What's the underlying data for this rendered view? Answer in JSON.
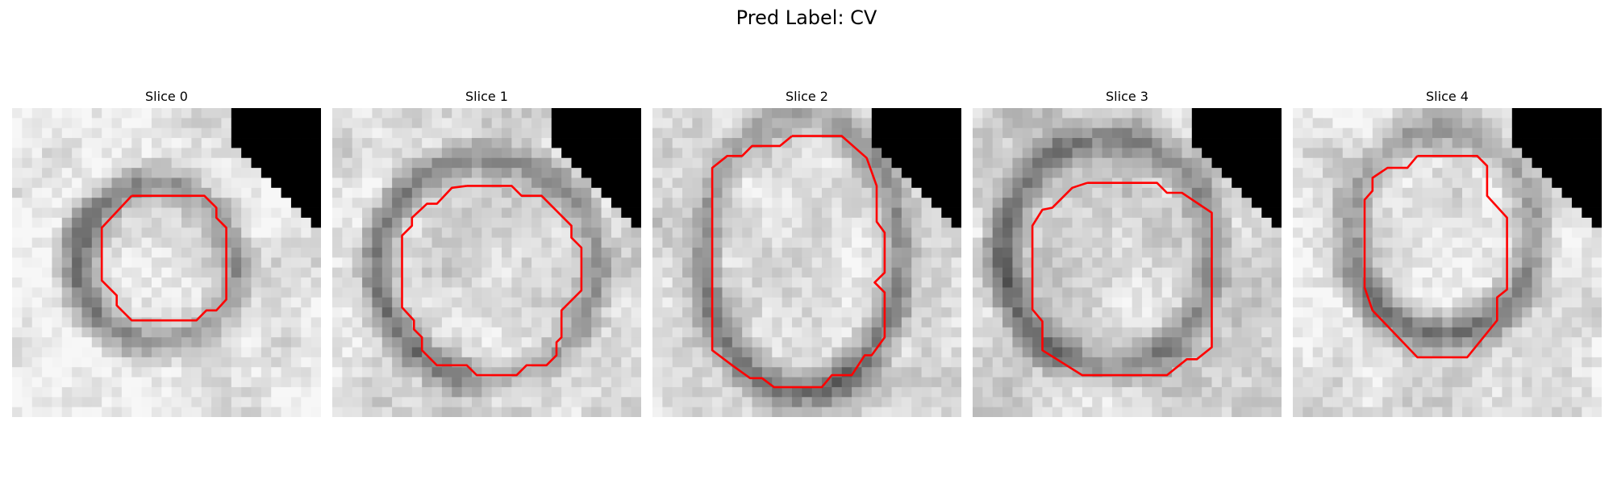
{
  "figure": {
    "title": "Pred Label: CV"
  },
  "panels": [
    {
      "title": "Slice 0"
    },
    {
      "title": "Slice 1"
    },
    {
      "title": "Slice 2"
    },
    {
      "title": "Slice 3"
    },
    {
      "title": "Slice 4"
    }
  ],
  "colors": {
    "contour": "#ff0000",
    "background_mask": "#000000"
  }
}
